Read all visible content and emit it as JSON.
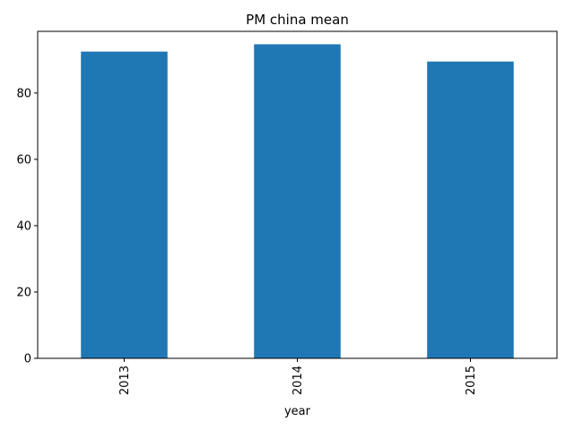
{
  "chart_data": {
    "type": "bar",
    "title": "PM china mean",
    "xlabel": "year",
    "ylabel": "",
    "categories": [
      "2013",
      "2014",
      "2015"
    ],
    "values": [
      92.5,
      94.7,
      89.5
    ],
    "ylim": [
      0,
      98.6
    ],
    "yticks": [
      0,
      20,
      40,
      60,
      80
    ],
    "grid": false,
    "legend": "none",
    "bar_color": "#1f77b4",
    "xtick_rotation": "vertical"
  }
}
